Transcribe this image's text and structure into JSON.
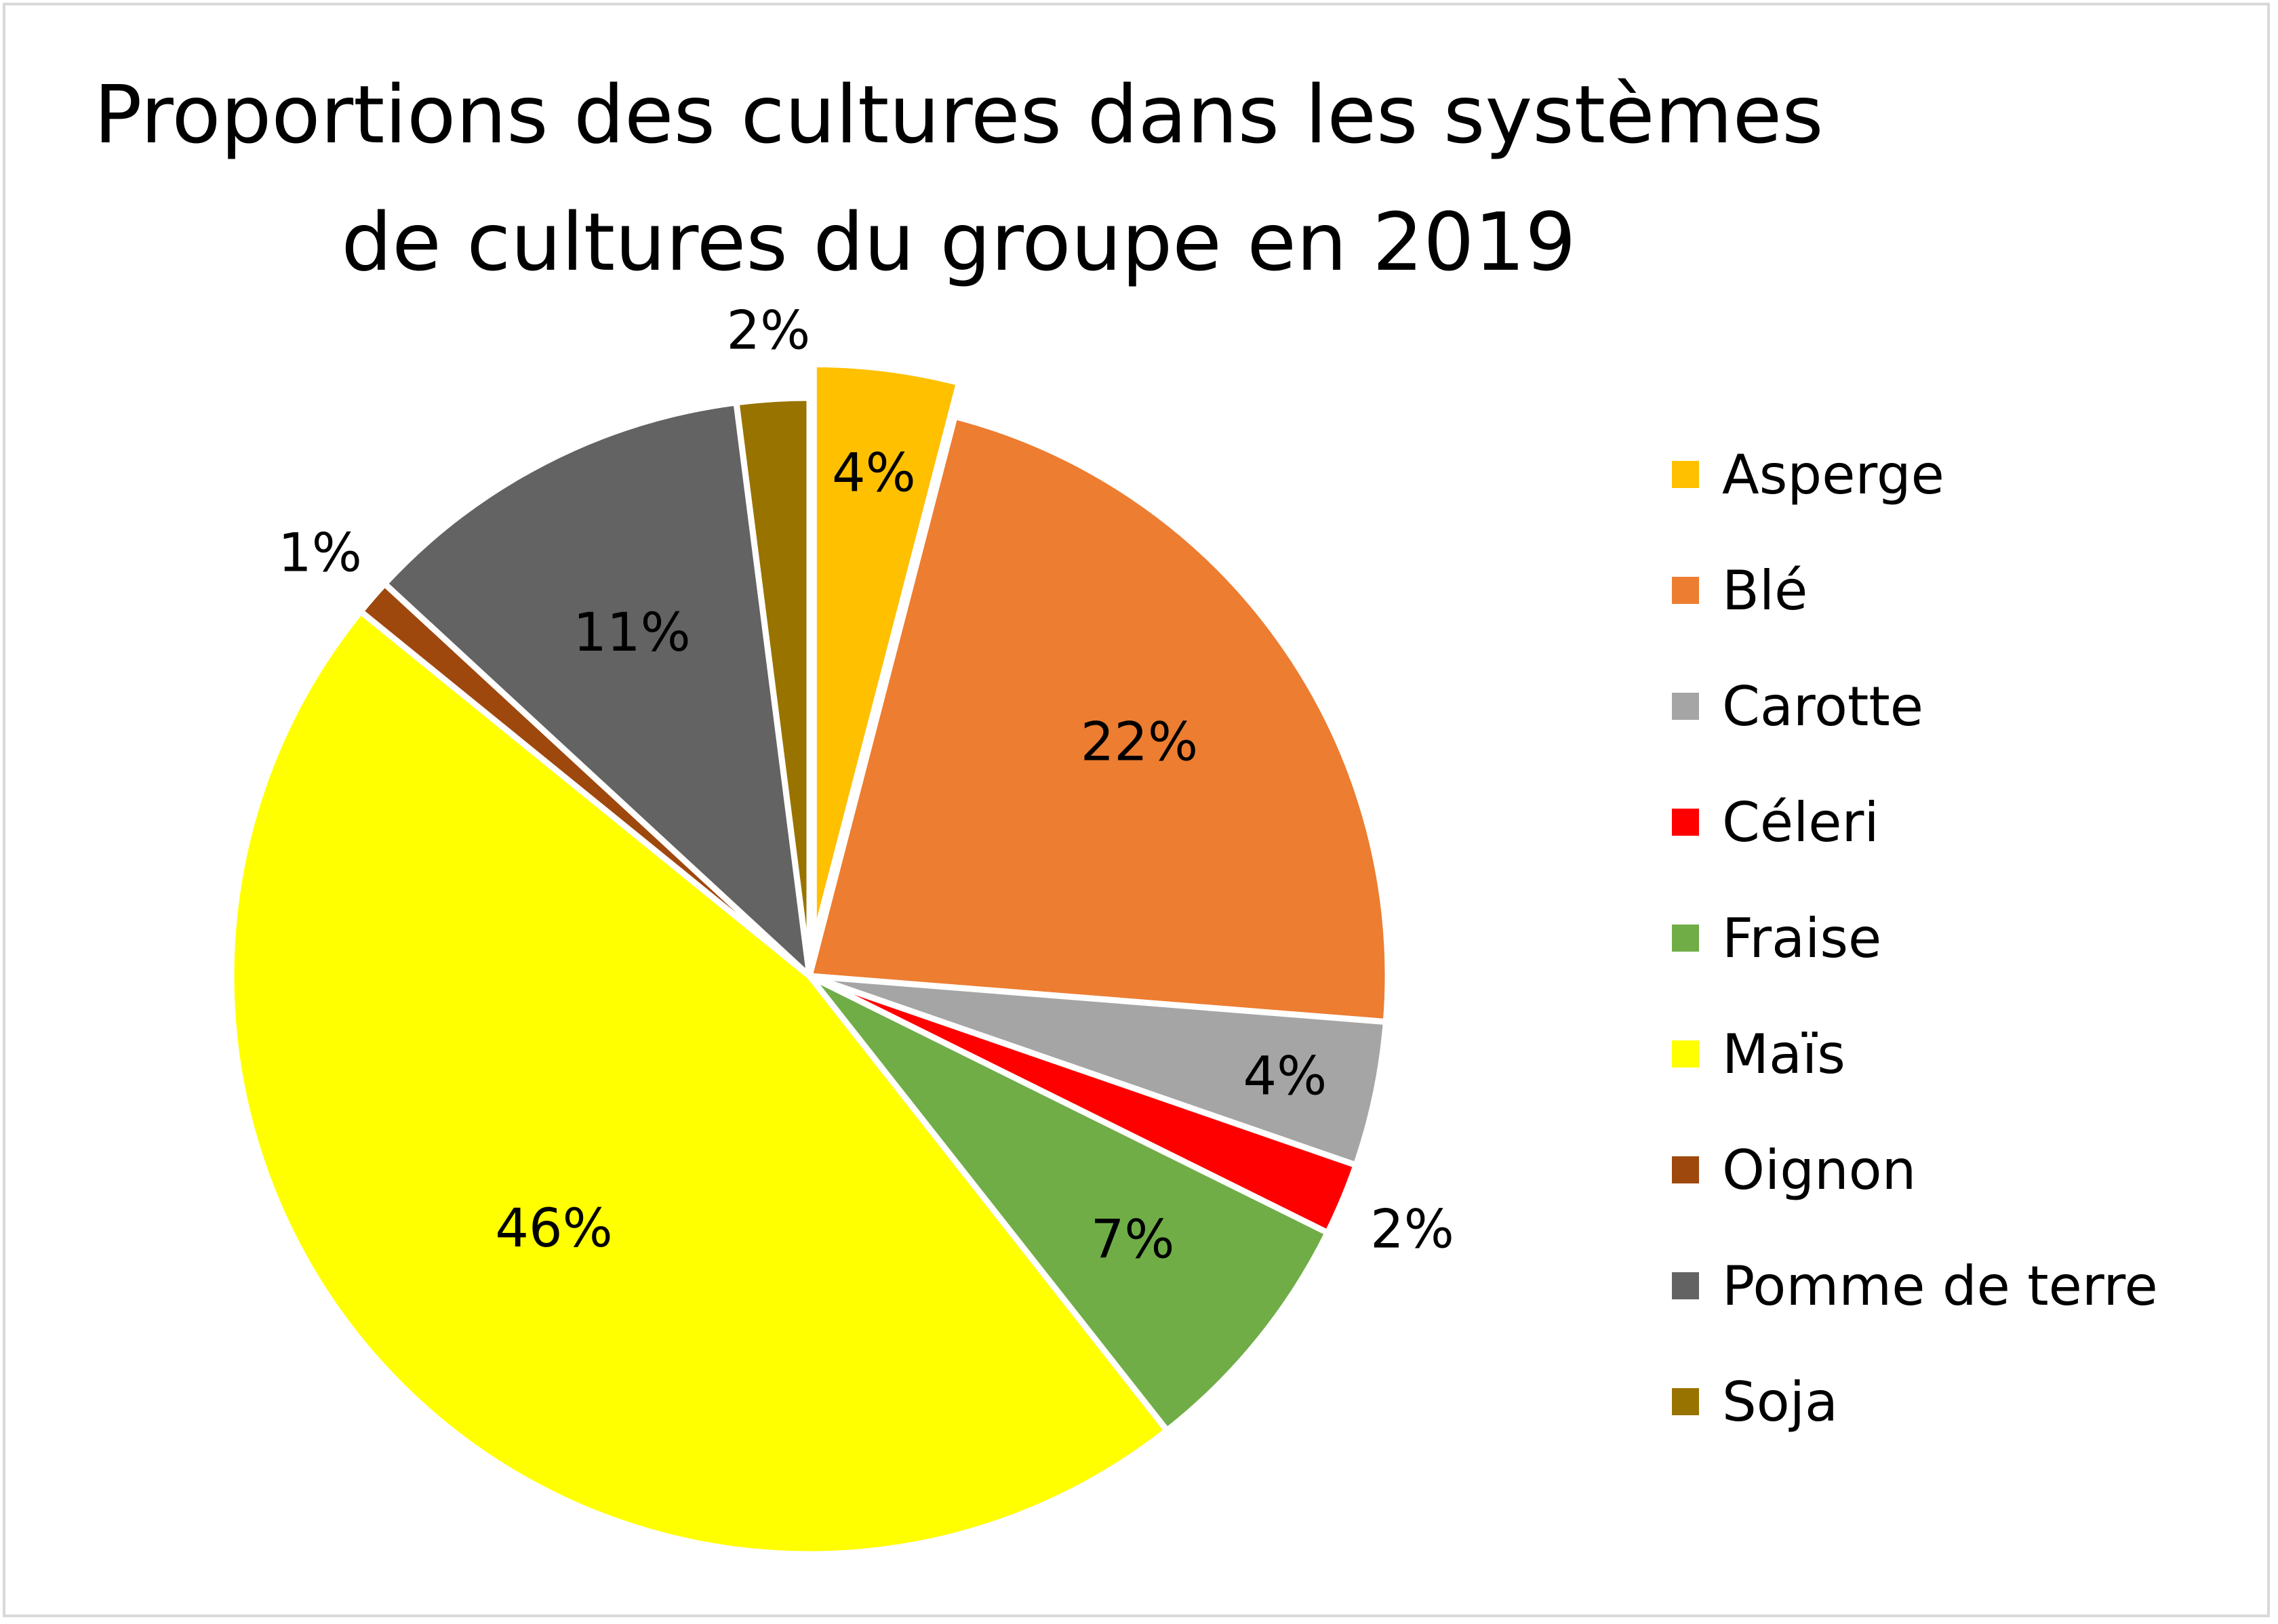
{
  "chart_data": {
    "type": "pie",
    "title_lines": [
      "Proportions des cultures dans les systèmes",
      "de cultures du groupe en 2019"
    ],
    "categories": [
      "Asperge",
      "Blé",
      "Carotte",
      "Céleri",
      "Fraise",
      "Maïs",
      "Oignon",
      "Pomme de terre",
      "Soja"
    ],
    "values": [
      4,
      22,
      4,
      2,
      7,
      46,
      1,
      11,
      2
    ],
    "labels": [
      "4%",
      "22%",
      "4%",
      "2%",
      "7%",
      "46%",
      "1%",
      "11%",
      "2%"
    ],
    "colors": [
      "#FFC000",
      "#ED7D31",
      "#A5A5A5",
      "#FF0000",
      "#70AD47",
      "#FFFF00",
      "#9E480E",
      "#636363",
      "#997300"
    ],
    "exploded": [
      "Asperge"
    ],
    "start_angle_deg": 0,
    "direction": "clockwise",
    "legend_position": "right"
  }
}
